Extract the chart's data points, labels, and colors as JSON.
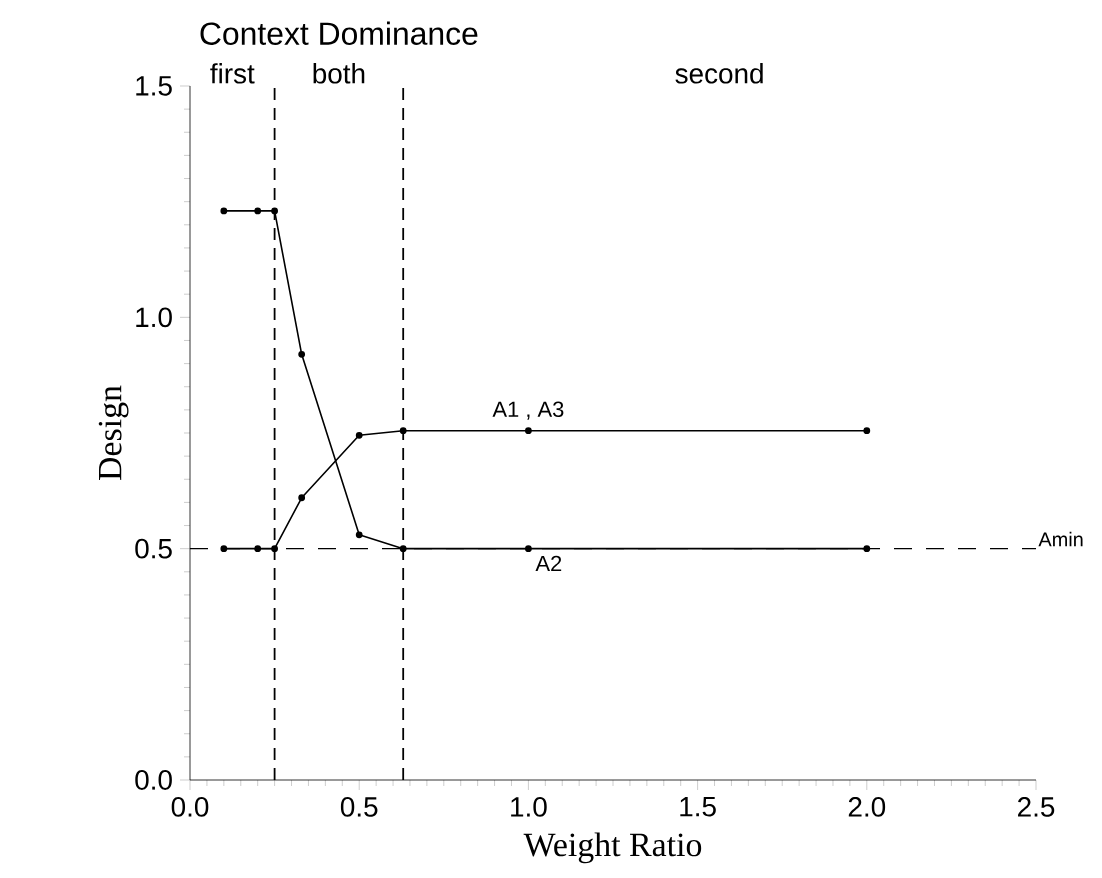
{
  "chart_data": {
    "type": "line",
    "title": "Context Dominance",
    "xlabel": "Weight Ratio",
    "ylabel": "Design",
    "annotations": [
      "first",
      "both",
      "second"
    ],
    "x": [
      0.1,
      0.2,
      0.25,
      0.33,
      0.5,
      0.63,
      1.0,
      2.0
    ],
    "series": [
      {
        "name": "A2",
        "color": "#000000",
        "values": [
          1.23,
          1.23,
          1.23,
          0.92,
          0.53,
          0.5,
          0.5,
          0.5
        ]
      },
      {
        "name": "A1 , A3",
        "color": "#000000",
        "values": [
          0.5,
          0.5,
          0.5,
          0.61,
          0.745,
          0.755,
          0.755,
          0.755
        ]
      }
    ],
    "xlim": [
      0,
      2.5
    ],
    "ylim": [
      0,
      1.5
    ],
    "xticks": [
      {
        "value": 0,
        "label": "0.0"
      },
      {
        "value": 0.5,
        "label": "0.5"
      },
      {
        "value": 1,
        "label": "1.0"
      },
      {
        "value": 1.5,
        "label": "1.5"
      },
      {
        "value": 2,
        "label": "2.0"
      },
      {
        "value": 2.5,
        "label": "2.5"
      }
    ],
    "yticks": [
      {
        "value": 0,
        "label": "0.0"
      },
      {
        "value": 0.5,
        "label": "0.5"
      },
      {
        "value": 1,
        "label": "1.0"
      },
      {
        "value": 1.5,
        "label": "1.5"
      }
    ],
    "ref_lines": [
      {
        "axis": "x",
        "value": 0.25,
        "line_style": "dashed"
      },
      {
        "axis": "x",
        "value": 0.63,
        "line_style": "dashed"
      },
      {
        "axis": "y",
        "value": 0.5,
        "label": "Amin",
        "line_style": "dashed"
      }
    ],
    "grid": false,
    "legend": false,
    "marker": "circle",
    "line_style": "solid"
  }
}
